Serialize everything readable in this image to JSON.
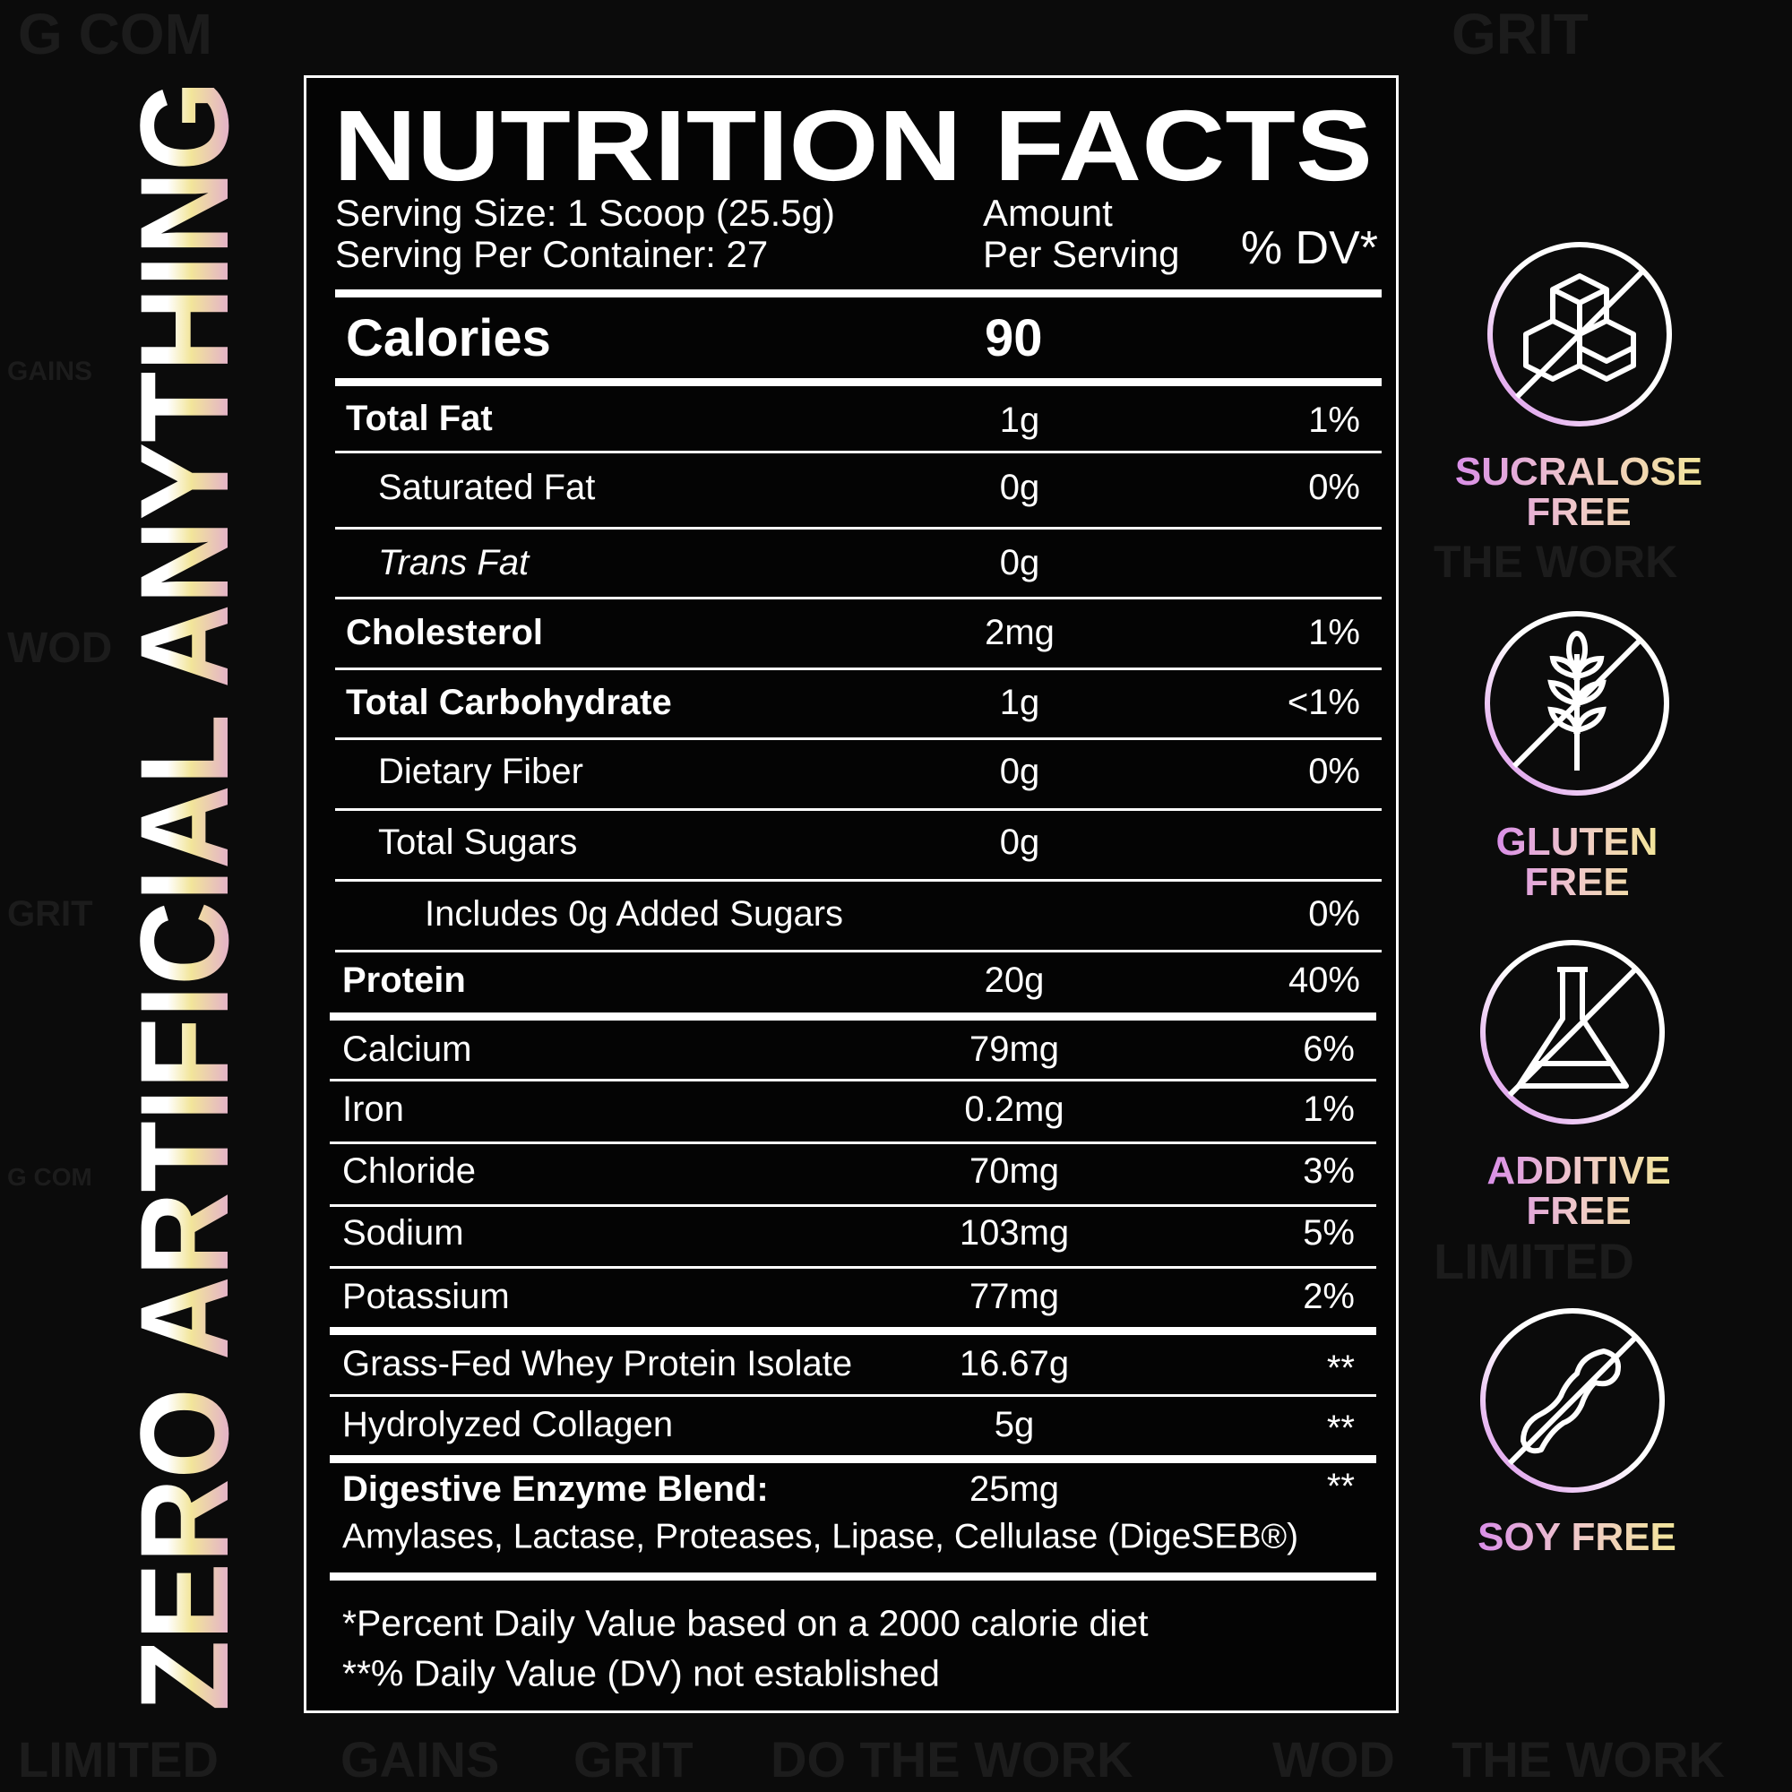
{
  "background_words": [
    "G COM",
    "GRIT",
    "THE WORK",
    "LIMITED",
    "GAINS",
    "WOD",
    "DO THE WORK",
    "GRIT",
    "G COM",
    "LIMITED",
    "WOD",
    "THE WORK",
    "GAINS",
    "GRIT"
  ],
  "side_banner": {
    "text": "ZERO ARTIFICIAL ANYTHING"
  },
  "label": {
    "title": "NUTRITION FACTS",
    "serving_size": "Serving Size: 1 Scoop (25.5g)",
    "servings_per_container": "Serving Per Container: 27",
    "amount_header_1": "Amount",
    "amount_header_2": "Per Serving",
    "dv_header": "% DV*",
    "calories_label": "Calories",
    "calories_value": "90",
    "rows": [
      {
        "name": "Total Fat",
        "amount": "1g",
        "dv": "1%"
      },
      {
        "name": "Saturated Fat",
        "amount": "0g",
        "dv": "0%"
      },
      {
        "name": "Trans Fat",
        "amount": "0g",
        "dv": ""
      },
      {
        "name": "Cholesterol",
        "amount": "2mg",
        "dv": "1%"
      },
      {
        "name": "Total Carbohydrate",
        "amount": "1g",
        "dv": "<1%"
      },
      {
        "name": "Dietary Fiber",
        "amount": "0g",
        "dv": "0%"
      },
      {
        "name": "Total Sugars",
        "amount": "0g",
        "dv": ""
      },
      {
        "name": "Includes 0g Added Sugars",
        "amount": "",
        "dv": "0%"
      },
      {
        "name": "Protein",
        "amount": "20g",
        "dv": "40%"
      },
      {
        "name": "Calcium",
        "amount": "79mg",
        "dv": "6%"
      },
      {
        "name": "Iron",
        "amount": "0.2mg",
        "dv": "1%"
      },
      {
        "name": "Chloride",
        "amount": "70mg",
        "dv": "3%"
      },
      {
        "name": "Sodium",
        "amount": "103mg",
        "dv": "5%"
      },
      {
        "name": "Potassium",
        "amount": "77mg",
        "dv": "2%"
      },
      {
        "name": "Grass-Fed Whey Protein Isolate",
        "amount": "16.67g",
        "dv": "**"
      },
      {
        "name": "Hydrolyzed Collagen",
        "amount": "5g",
        "dv": "**"
      },
      {
        "name": "Digestive Enzyme Blend:",
        "amount": "25mg",
        "dv": "**"
      }
    ],
    "enzyme_list": "Amylases, Lactase, Proteases, Lipase, Cellulase (DigeSEB®)",
    "footnote_1": "*Percent Daily Value based on a 2000 calorie diet",
    "footnote_2": "**% Daily Value (DV) not established"
  },
  "badges": [
    {
      "icon": "no-sugar-cubes-icon",
      "line1": "SUCRALOSE",
      "line2": "FREE"
    },
    {
      "icon": "no-wheat-icon",
      "line1": "GLUTEN",
      "line2": "FREE"
    },
    {
      "icon": "no-flask-icon",
      "line1": "ADDITIVE",
      "line2": "FREE"
    },
    {
      "icon": "no-soybean-icon",
      "line1": "SOY FREE",
      "line2": ""
    }
  ],
  "colors": {
    "gradient_start": "#d98ee8",
    "gradient_mid": "#f0c9c9",
    "gradient_end": "#f2e59a",
    "background": "#0b0b0b"
  }
}
